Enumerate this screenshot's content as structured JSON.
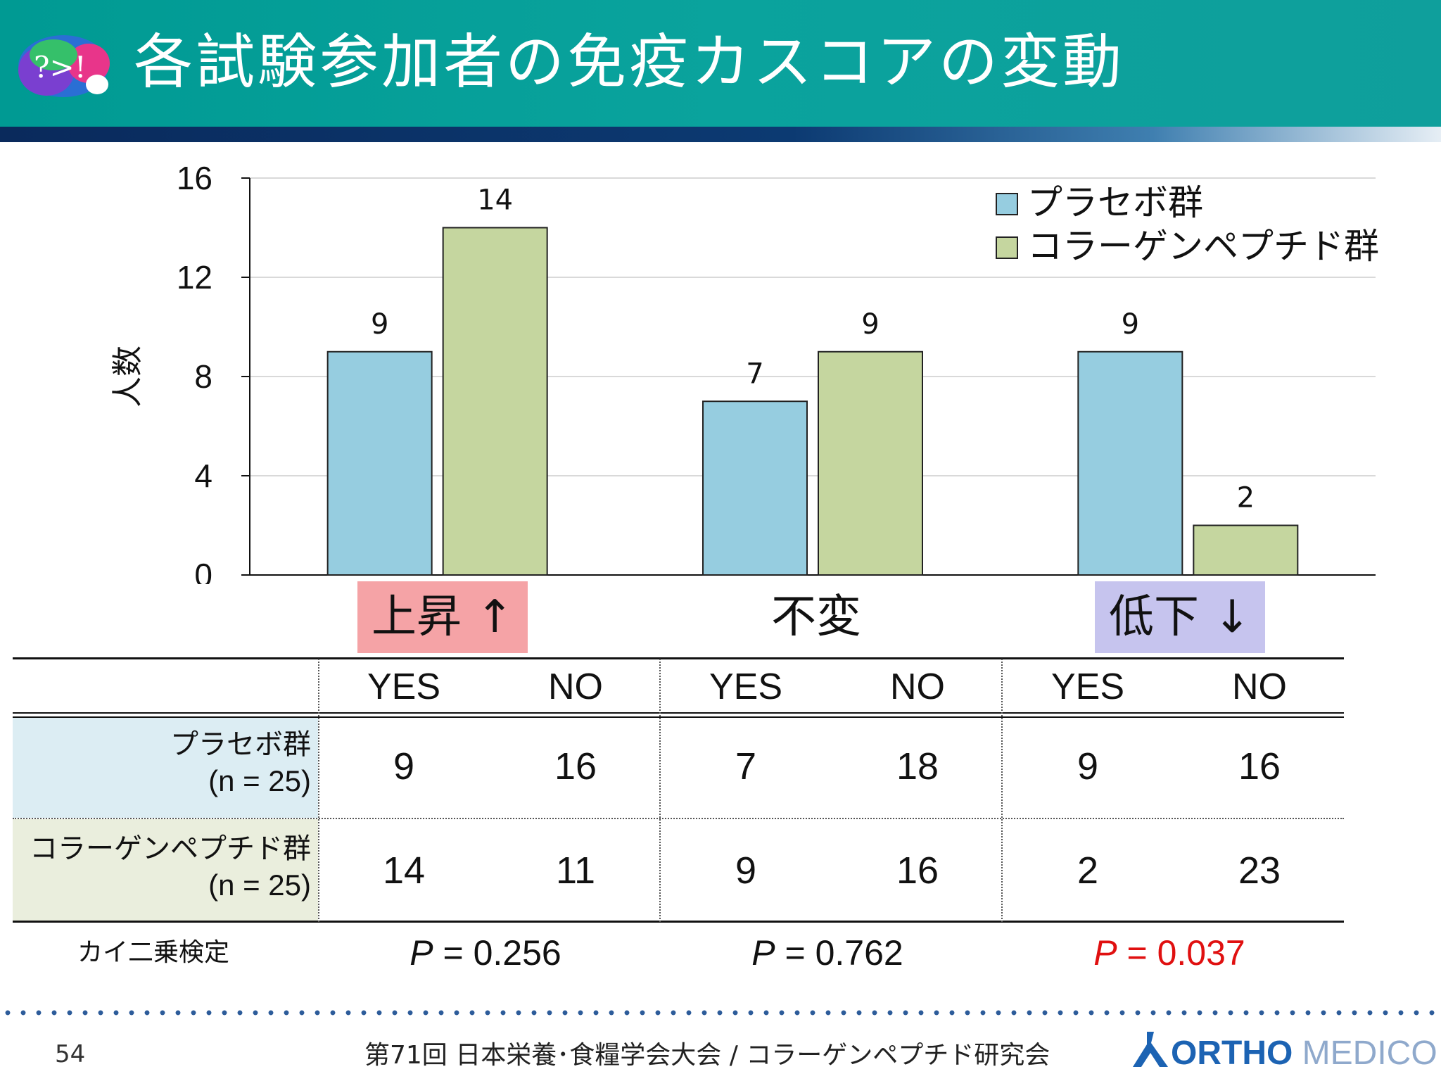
{
  "header": {
    "title": "各試験参加者の免疫カスコアの変動",
    "logo_text": "?>!"
  },
  "chart_data": {
    "type": "bar",
    "title": "",
    "ylabel": "人数",
    "xlabel": "",
    "ylim": [
      0,
      16
    ],
    "yticks": [
      "0",
      "4",
      "8",
      "12",
      "16"
    ],
    "categories": [
      "上昇 ↑",
      "不変",
      "低下 ↓"
    ],
    "series": [
      {
        "name": "プラセボ群",
        "values": [
          9,
          7,
          9
        ],
        "color": "#96cde0"
      },
      {
        "name": "コラーゲンペプチド群",
        "values": [
          14,
          9,
          2
        ],
        "color": "#c5d69f"
      }
    ],
    "grid": true,
    "legend_position": "top-right"
  },
  "categories_colors": {
    "up": "#f5a3a6",
    "down": "#c6c4ee"
  },
  "table": {
    "headers": [
      "YES",
      "NO",
      "YES",
      "NO",
      "YES",
      "NO"
    ],
    "rows": [
      {
        "label": "プラセボ群",
        "n": "(n = 25)",
        "values": [
          "9",
          "16",
          "7",
          "18",
          "9",
          "16"
        ],
        "bg": "#dcedf3"
      },
      {
        "label": "コラーゲンペプチド群",
        "n": "(n = 25)",
        "values": [
          "14",
          "11",
          "9",
          "16",
          "2",
          "23"
        ],
        "bg": "#eaeedd"
      }
    ],
    "test_label": "カイ二乗検定",
    "p_values": [
      {
        "p": "P",
        "rest": " = 0.256",
        "color": "#111111"
      },
      {
        "p": "P",
        "rest": " = 0.762",
        "color": "#111111"
      },
      {
        "p": "P",
        "rest": " = 0.037",
        "color": "#e01010"
      }
    ]
  },
  "footer": {
    "page": "54",
    "text": "第71回 日本栄養･食糧学会大会 / コラーゲンペプチド研究会",
    "brand_main": "ORTHO",
    "brand_sub": " MEDICO"
  }
}
